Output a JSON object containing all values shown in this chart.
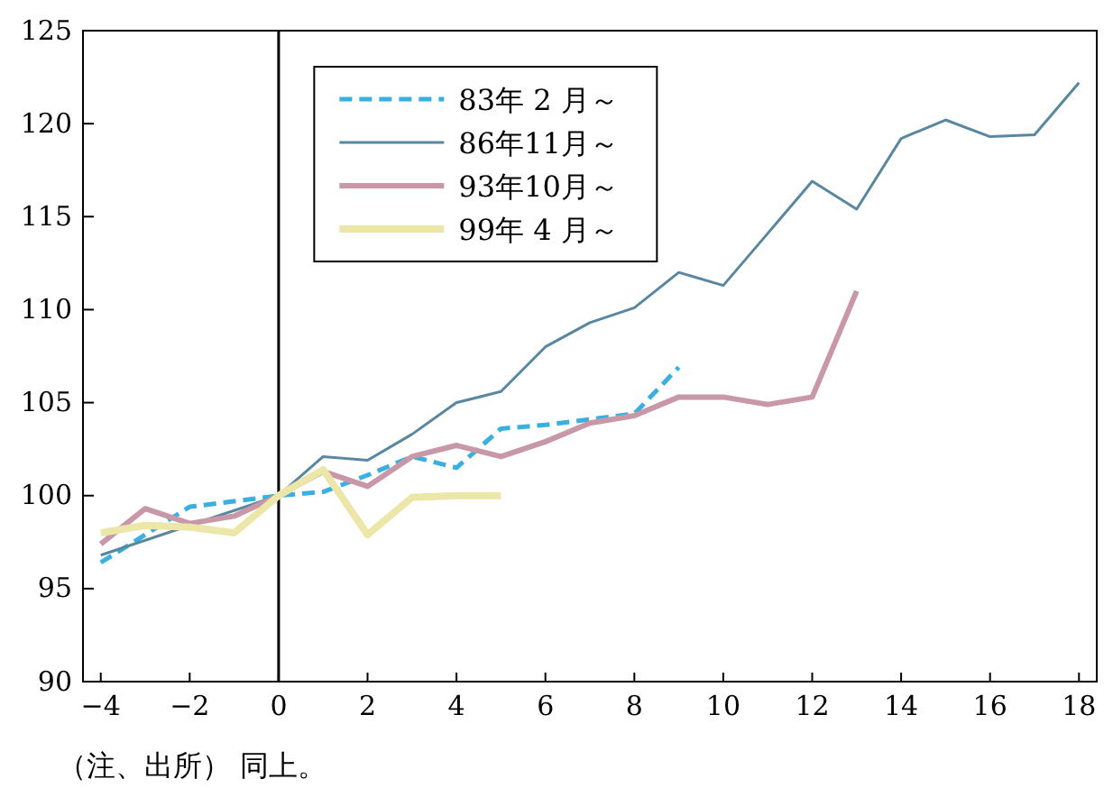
{
  "chart_data": {
    "type": "line",
    "x": [
      -4,
      -3,
      -2,
      -1,
      0,
      1,
      2,
      3,
      4,
      5,
      6,
      7,
      8,
      9,
      10,
      11,
      12,
      13,
      14,
      15,
      16,
      17,
      18
    ],
    "series": [
      {
        "name": "83年 2 月～",
        "color": "#3ab0e0",
        "line_style": "dashed",
        "x": [
          -4,
          -3,
          -2,
          -1,
          0,
          1,
          2,
          3,
          4,
          5,
          6,
          7,
          8,
          9
        ],
        "values": [
          96.4,
          97.9,
          99.4,
          99.7,
          100,
          100.2,
          101.1,
          102.1,
          101.5,
          103.6,
          103.8,
          104.1,
          104.4,
          106.9
        ]
      },
      {
        "name": "86年11月～",
        "color": "#5a87a0",
        "values": [
          96.8,
          97.6,
          98.4,
          99.2,
          100,
          102.1,
          101.9,
          103.3,
          105.0,
          105.6,
          108.0,
          109.3,
          110.1,
          112.0,
          111.3,
          114.1,
          116.9,
          115.4,
          119.2,
          120.2,
          119.3,
          119.4,
          122.2
        ]
      },
      {
        "name": "93年10月～",
        "color": "#c898a8",
        "x": [
          -4,
          -3,
          -2,
          -1,
          0,
          1,
          2,
          3,
          4,
          5,
          6,
          7,
          8,
          9,
          10,
          11,
          12,
          13
        ],
        "values": [
          97.4,
          99.3,
          98.5,
          98.9,
          100,
          101.3,
          100.5,
          102.1,
          102.7,
          102.1,
          102.9,
          103.9,
          104.3,
          105.3,
          105.3,
          104.9,
          105.3,
          111.0
        ]
      },
      {
        "name": "99年 4 月～",
        "color": "#ece6a8",
        "x": [
          -4,
          -3,
          -2,
          -1,
          0,
          1,
          2,
          3,
          4,
          5
        ],
        "values": [
          98.0,
          98.4,
          98.3,
          98.0,
          100,
          101.4,
          97.9,
          99.9,
          100.0,
          100.0
        ]
      }
    ],
    "xlim": [
      -4.4,
      18.4
    ],
    "xticks": [
      -4,
      -2,
      0,
      2,
      4,
      6,
      8,
      10,
      12,
      14,
      16,
      18
    ],
    "ylim": [
      90,
      125
    ],
    "yticks": [
      90,
      95,
      100,
      105,
      110,
      115,
      120,
      125
    ],
    "ref_lines": [
      {
        "axis": "x",
        "value": 0,
        "color": "#000000"
      }
    ],
    "legend": "top left",
    "grid": false,
    "marker": "none",
    "annotations": [
      "（注、出所） 同上。"
    ]
  }
}
